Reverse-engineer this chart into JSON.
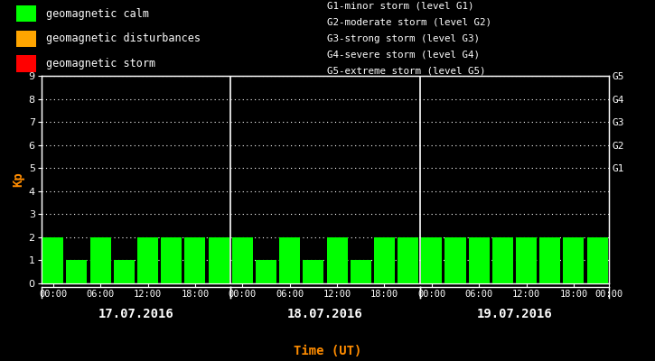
{
  "background_color": "#000000",
  "plot_bg_color": "#000000",
  "bar_color_calm": "#00ff00",
  "bar_color_disturb": "#ffa500",
  "bar_color_storm": "#ff0000",
  "grid_color": "#ffffff",
  "text_color": "#ffffff",
  "kp_label_color": "#ff8c00",
  "xlabel_color": "#ff8c00",
  "date_label_color": "#ffffff",
  "day_separator_color": "#ffffff",
  "kp_values": [
    2,
    1,
    2,
    1,
    2,
    2,
    2,
    2,
    2,
    1,
    2,
    1,
    2,
    1,
    2,
    2,
    2,
    2,
    2,
    2,
    2,
    2,
    2,
    2
  ],
  "dates": [
    "17.07.2016",
    "18.07.2016",
    "19.07.2016"
  ],
  "xlabel": "Time (UT)",
  "ylabel": "Kp",
  "ylim": [
    0,
    9
  ],
  "yticks": [
    0,
    1,
    2,
    3,
    4,
    5,
    6,
    7,
    8,
    9
  ],
  "legend_items": [
    {
      "label": "geomagnetic calm",
      "color": "#00ff00"
    },
    {
      "label": "geomagnetic disturbances",
      "color": "#ffa500"
    },
    {
      "label": "geomagnetic storm",
      "color": "#ff0000"
    }
  ],
  "legend_right_lines": [
    "G1-minor storm (level G1)",
    "G2-moderate storm (level G2)",
    "G3-strong storm (level G3)",
    "G4-severe storm (level G4)",
    "G5-extreme storm (level G5)"
  ],
  "calm_threshold": 4,
  "storm_min": 5,
  "time_labels": [
    "00:00",
    "06:00",
    "12:00",
    "18:00"
  ],
  "right_g_labels": [
    "G1",
    "G2",
    "G3",
    "G4",
    "G5"
  ],
  "right_g_positions": [
    5,
    6,
    7,
    8,
    9
  ]
}
